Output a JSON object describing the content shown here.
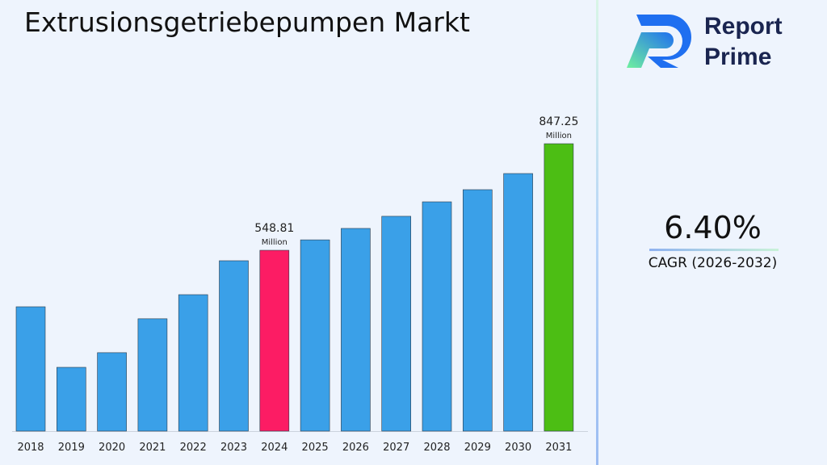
{
  "title": "Extrusionsgetriebepumpen Markt",
  "logo": {
    "line1": "Report",
    "line2": "Prime"
  },
  "cagr": {
    "value": "6.40%",
    "label": "CAGR (2026-2032)"
  },
  "colors": {
    "default": "#3aa0e8",
    "highlight_2024": "#fc1c64",
    "highlight_2031": "#4cbe14"
  },
  "chart_data": {
    "type": "bar",
    "title": "Extrusionsgetriebepumpen Markt",
    "categories": [
      "2018",
      "2019",
      "2020",
      "2021",
      "2022",
      "2023",
      "2024",
      "2025",
      "2026",
      "2027",
      "2028",
      "2029",
      "2030",
      "2031"
    ],
    "values": [
      390.6,
      221,
      262,
      357,
      424.5,
      519.5,
      548.81,
      578,
      610,
      644,
      684.5,
      718.5,
      763.7,
      847.25
    ],
    "unit": "Million",
    "data_labels": [
      {
        "category": "2024",
        "value": "548.81",
        "unit": "Million"
      },
      {
        "category": "2031",
        "value": "847.25",
        "unit": "Million"
      }
    ],
    "grid": false,
    "legend": "none"
  }
}
